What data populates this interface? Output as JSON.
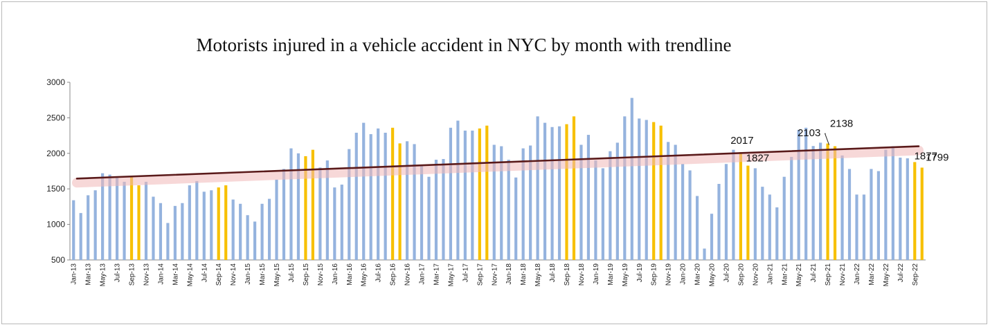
{
  "chart_data": {
    "type": "bar",
    "title": "Motorists injured in a vehicle accident in NYC by month with trendline",
    "xlabel": "",
    "ylabel": "",
    "ylim": [
      500,
      3000
    ],
    "yticks": [
      500,
      1000,
      1500,
      2000,
      2500,
      3000
    ],
    "grid": false,
    "legend": "none",
    "colors": {
      "bar": "#95b3de",
      "highlight": "#f7c000",
      "trend": "#5a1a1a",
      "trend_glow": "#f0b8b8",
      "axis": "#888888"
    },
    "x_tick_labels": [
      "Jan-13",
      "Mar-13",
      "May-13",
      "Jul-13",
      "Sep-13",
      "Nov-13",
      "Jan-14",
      "Mar-14",
      "May-14",
      "Jul-14",
      "Sep-14",
      "Nov-14",
      "Jan-15",
      "Mar-15",
      "May-15",
      "Jul-15",
      "Sep-15",
      "Nov-15",
      "Jan-16",
      "Mar-16",
      "May-16",
      "Jul-16",
      "Sep-16",
      "Nov-16",
      "Jan-17",
      "Mar-17",
      "May-17",
      "Jul-17",
      "Sep-17",
      "Nov-17",
      "Jan-18",
      "Mar-18",
      "May-18",
      "Jul-18",
      "Sep-18",
      "Nov-18",
      "Jan-19",
      "Mar-19",
      "May-19",
      "Jul-19",
      "Sep-19",
      "Nov-19",
      "Jan-20",
      "Mar-20",
      "May-20",
      "Jul-20",
      "Sep-20",
      "Nov-20",
      "Jan-21",
      "Mar-21",
      "May-21",
      "Jul-21",
      "Sep-21",
      "Nov-21",
      "Jan-22",
      "Mar-22",
      "May-22",
      "Jul-22",
      "Sep-22"
    ],
    "months": [
      "Jan-13",
      "Feb-13",
      "Mar-13",
      "Apr-13",
      "May-13",
      "Jun-13",
      "Jul-13",
      "Aug-13",
      "Sep-13",
      "Oct-13",
      "Nov-13",
      "Dec-13",
      "Jan-14",
      "Feb-14",
      "Mar-14",
      "Apr-14",
      "May-14",
      "Jun-14",
      "Jul-14",
      "Aug-14",
      "Sep-14",
      "Oct-14",
      "Nov-14",
      "Dec-14",
      "Jan-15",
      "Feb-15",
      "Mar-15",
      "Apr-15",
      "May-15",
      "Jun-15",
      "Jul-15",
      "Aug-15",
      "Sep-15",
      "Oct-15",
      "Nov-15",
      "Dec-15",
      "Jan-16",
      "Feb-16",
      "Mar-16",
      "Apr-16",
      "May-16",
      "Jun-16",
      "Jul-16",
      "Aug-16",
      "Sep-16",
      "Oct-16",
      "Nov-16",
      "Dec-16",
      "Jan-17",
      "Feb-17",
      "Mar-17",
      "Apr-17",
      "May-17",
      "Jun-17",
      "Jul-17",
      "Aug-17",
      "Sep-17",
      "Oct-17",
      "Nov-17",
      "Dec-17",
      "Jan-18",
      "Feb-18",
      "Mar-18",
      "Apr-18",
      "May-18",
      "Jun-18",
      "Jul-18",
      "Aug-18",
      "Sep-18",
      "Oct-18",
      "Nov-18",
      "Dec-18",
      "Jan-19",
      "Feb-19",
      "Mar-19",
      "Apr-19",
      "May-19",
      "Jun-19",
      "Jul-19",
      "Aug-19",
      "Sep-19",
      "Oct-19",
      "Nov-19",
      "Dec-19",
      "Jan-20",
      "Feb-20",
      "Mar-20",
      "Apr-20",
      "May-20",
      "Jun-20",
      "Jul-20",
      "Aug-20",
      "Sep-20",
      "Oct-20",
      "Nov-20",
      "Dec-20",
      "Jan-21",
      "Feb-21",
      "Mar-21",
      "Apr-21",
      "May-21",
      "Jun-21",
      "Jul-21",
      "Aug-21",
      "Sep-21",
      "Oct-21",
      "Nov-21",
      "Dec-21",
      "Jan-22",
      "Feb-22",
      "Mar-22",
      "Apr-22",
      "May-22",
      "Jun-22",
      "Jul-22",
      "Aug-22",
      "Sep-22",
      "Oct-22"
    ],
    "values": [
      1340,
      1160,
      1410,
      1480,
      1720,
      1700,
      1660,
      1600,
      1680,
      1550,
      1600,
      1390,
      1300,
      1020,
      1260,
      1300,
      1550,
      1610,
      1460,
      1480,
      1520,
      1550,
      1350,
      1290,
      1130,
      1040,
      1290,
      1360,
      1630,
      1780,
      2070,
      2000,
      1960,
      2050,
      1800,
      1900,
      1520,
      1560,
      2060,
      2290,
      2430,
      2270,
      2350,
      2290,
      2360,
      2140,
      2170,
      2130,
      1840,
      1670,
      1910,
      1920,
      2360,
      2460,
      2320,
      2320,
      2350,
      2390,
      2120,
      2100,
      1910,
      1660,
      2070,
      2110,
      2520,
      2430,
      2370,
      2380,
      2410,
      2520,
      2120,
      2260,
      1900,
      1790,
      2030,
      2150,
      2520,
      2780,
      2490,
      2470,
      2440,
      2390,
      2160,
      2120,
      1850,
      1760,
      1400,
      660,
      1150,
      1570,
      1850,
      2050,
      2017,
      1827,
      1790,
      1530,
      1420,
      1240,
      1670,
      1950,
      2330,
      2360,
      2103,
      2150,
      2138,
      2100,
      1970,
      1780,
      1420,
      1420,
      1780,
      1750,
      2050,
      2100,
      1940,
      1930,
      1877,
      1799
    ],
    "highlight_months": [
      "Sep-13",
      "Oct-13",
      "Sep-14",
      "Oct-14",
      "Sep-15",
      "Oct-15",
      "Sep-16",
      "Oct-16",
      "Sep-17",
      "Oct-17",
      "Sep-18",
      "Oct-18",
      "Sep-19",
      "Oct-19",
      "Sep-20",
      "Oct-20",
      "Sep-21",
      "Oct-21",
      "Sep-22",
      "Oct-22"
    ],
    "trendline": {
      "start": 1645,
      "end": 2100
    },
    "data_labels": [
      {
        "month": "Sep-20",
        "text": "2017"
      },
      {
        "month": "Oct-20",
        "text": "1827"
      },
      {
        "month": "Jul-21",
        "text": "2103"
      },
      {
        "month": "Sep-21",
        "text": "2138"
      },
      {
        "month": "Sep-22",
        "text": "1877"
      },
      {
        "month": "Oct-22",
        "text": "1799"
      }
    ]
  }
}
